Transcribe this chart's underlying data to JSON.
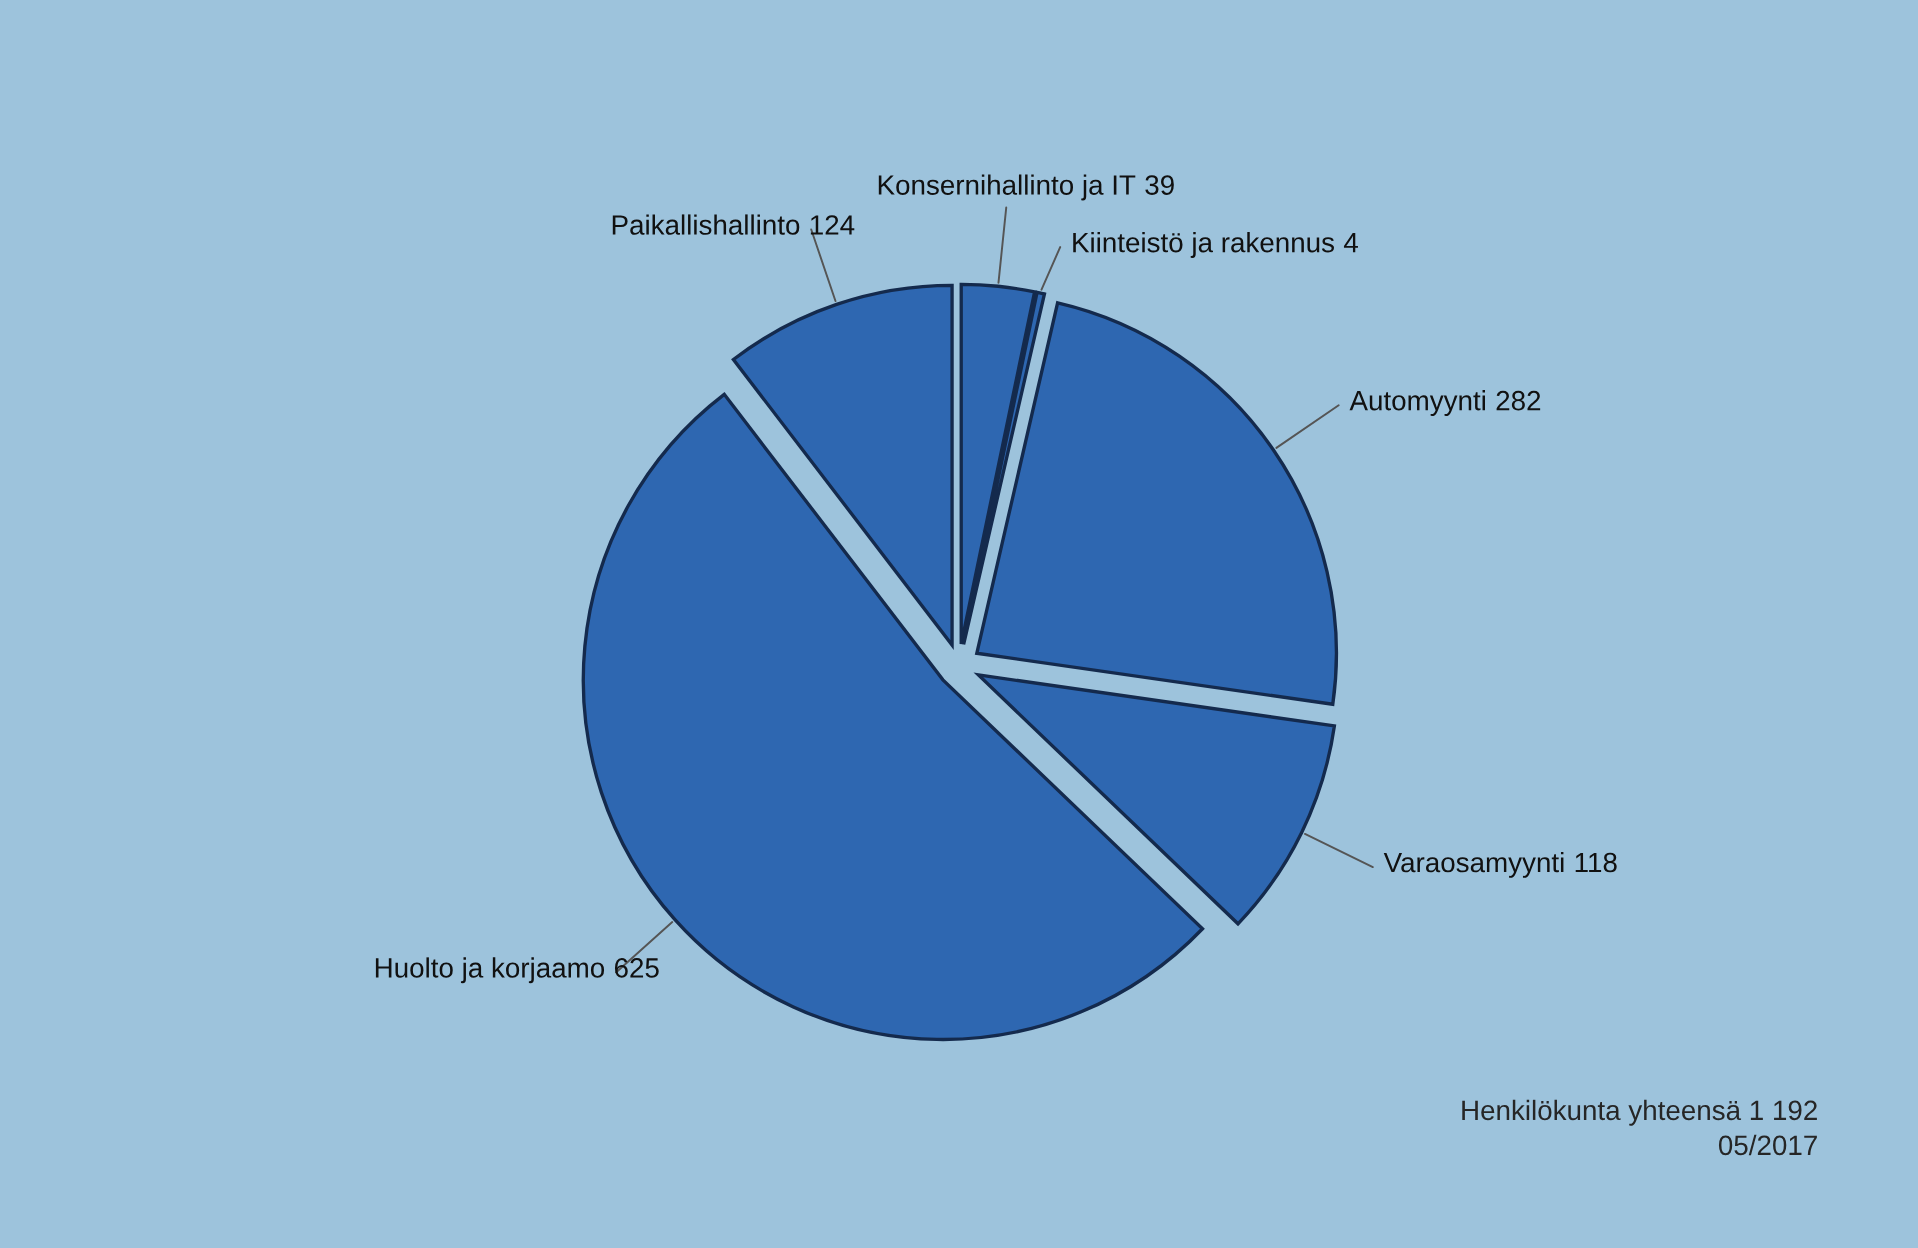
{
  "chart_data": {
    "type": "pie",
    "categories": [
      "Konsernihallinto ja IT",
      "Kiinteistö ja rakennus",
      "Automyynti",
      "Varaosamyynti",
      "Huolto ja korjaamo",
      "Paikallishallinto"
    ],
    "values": [
      39,
      4,
      282,
      118,
      625,
      124
    ],
    "colors": [
      "#2e67b1",
      "#2e67b1",
      "#2e67b1",
      "#2e67b1",
      "#2e67b1",
      "#2e67b1"
    ],
    "data_labels": true,
    "legend": false,
    "annotations": [
      "Henkilökunta yhteensä 1 192",
      "05/2017"
    ]
  }
}
